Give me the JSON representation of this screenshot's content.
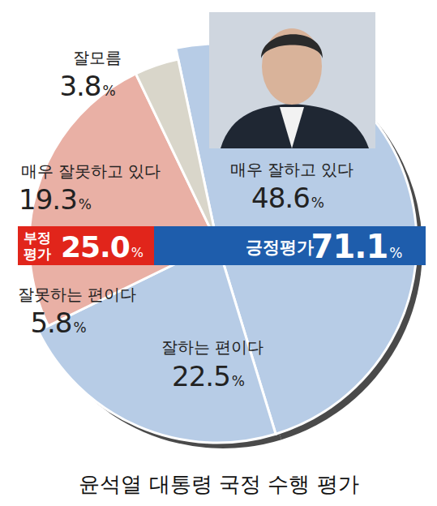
{
  "chart_data": {
    "type": "pie",
    "title": "윤석열 대통령 국정 수행 평가",
    "categories": [
      "매우 잘하고 있다",
      "잘하는 편이다",
      "잘못하는 편이다",
      "매우 잘못하고 있다",
      "잘모름"
    ],
    "values": [
      48.6,
      22.5,
      5.8,
      19.3,
      3.8
    ],
    "value_labels": [
      "48.6%",
      "22.5%",
      "5.8%",
      "19.3%",
      "3.8%"
    ],
    "colors": [
      "#b7cce6",
      "#b7cce6",
      "#e9b0a5",
      "#e9b0a5",
      "#d9d6ca"
    ],
    "data_labels": true,
    "groups": [
      {
        "name": "긍정평가",
        "value": 71.1,
        "label": "71.1%",
        "color": "#1e5dac"
      },
      {
        "name": "부정평가",
        "value": 25,
        "label": "25.0%",
        "color": "#e1251b"
      }
    ]
  }
}
